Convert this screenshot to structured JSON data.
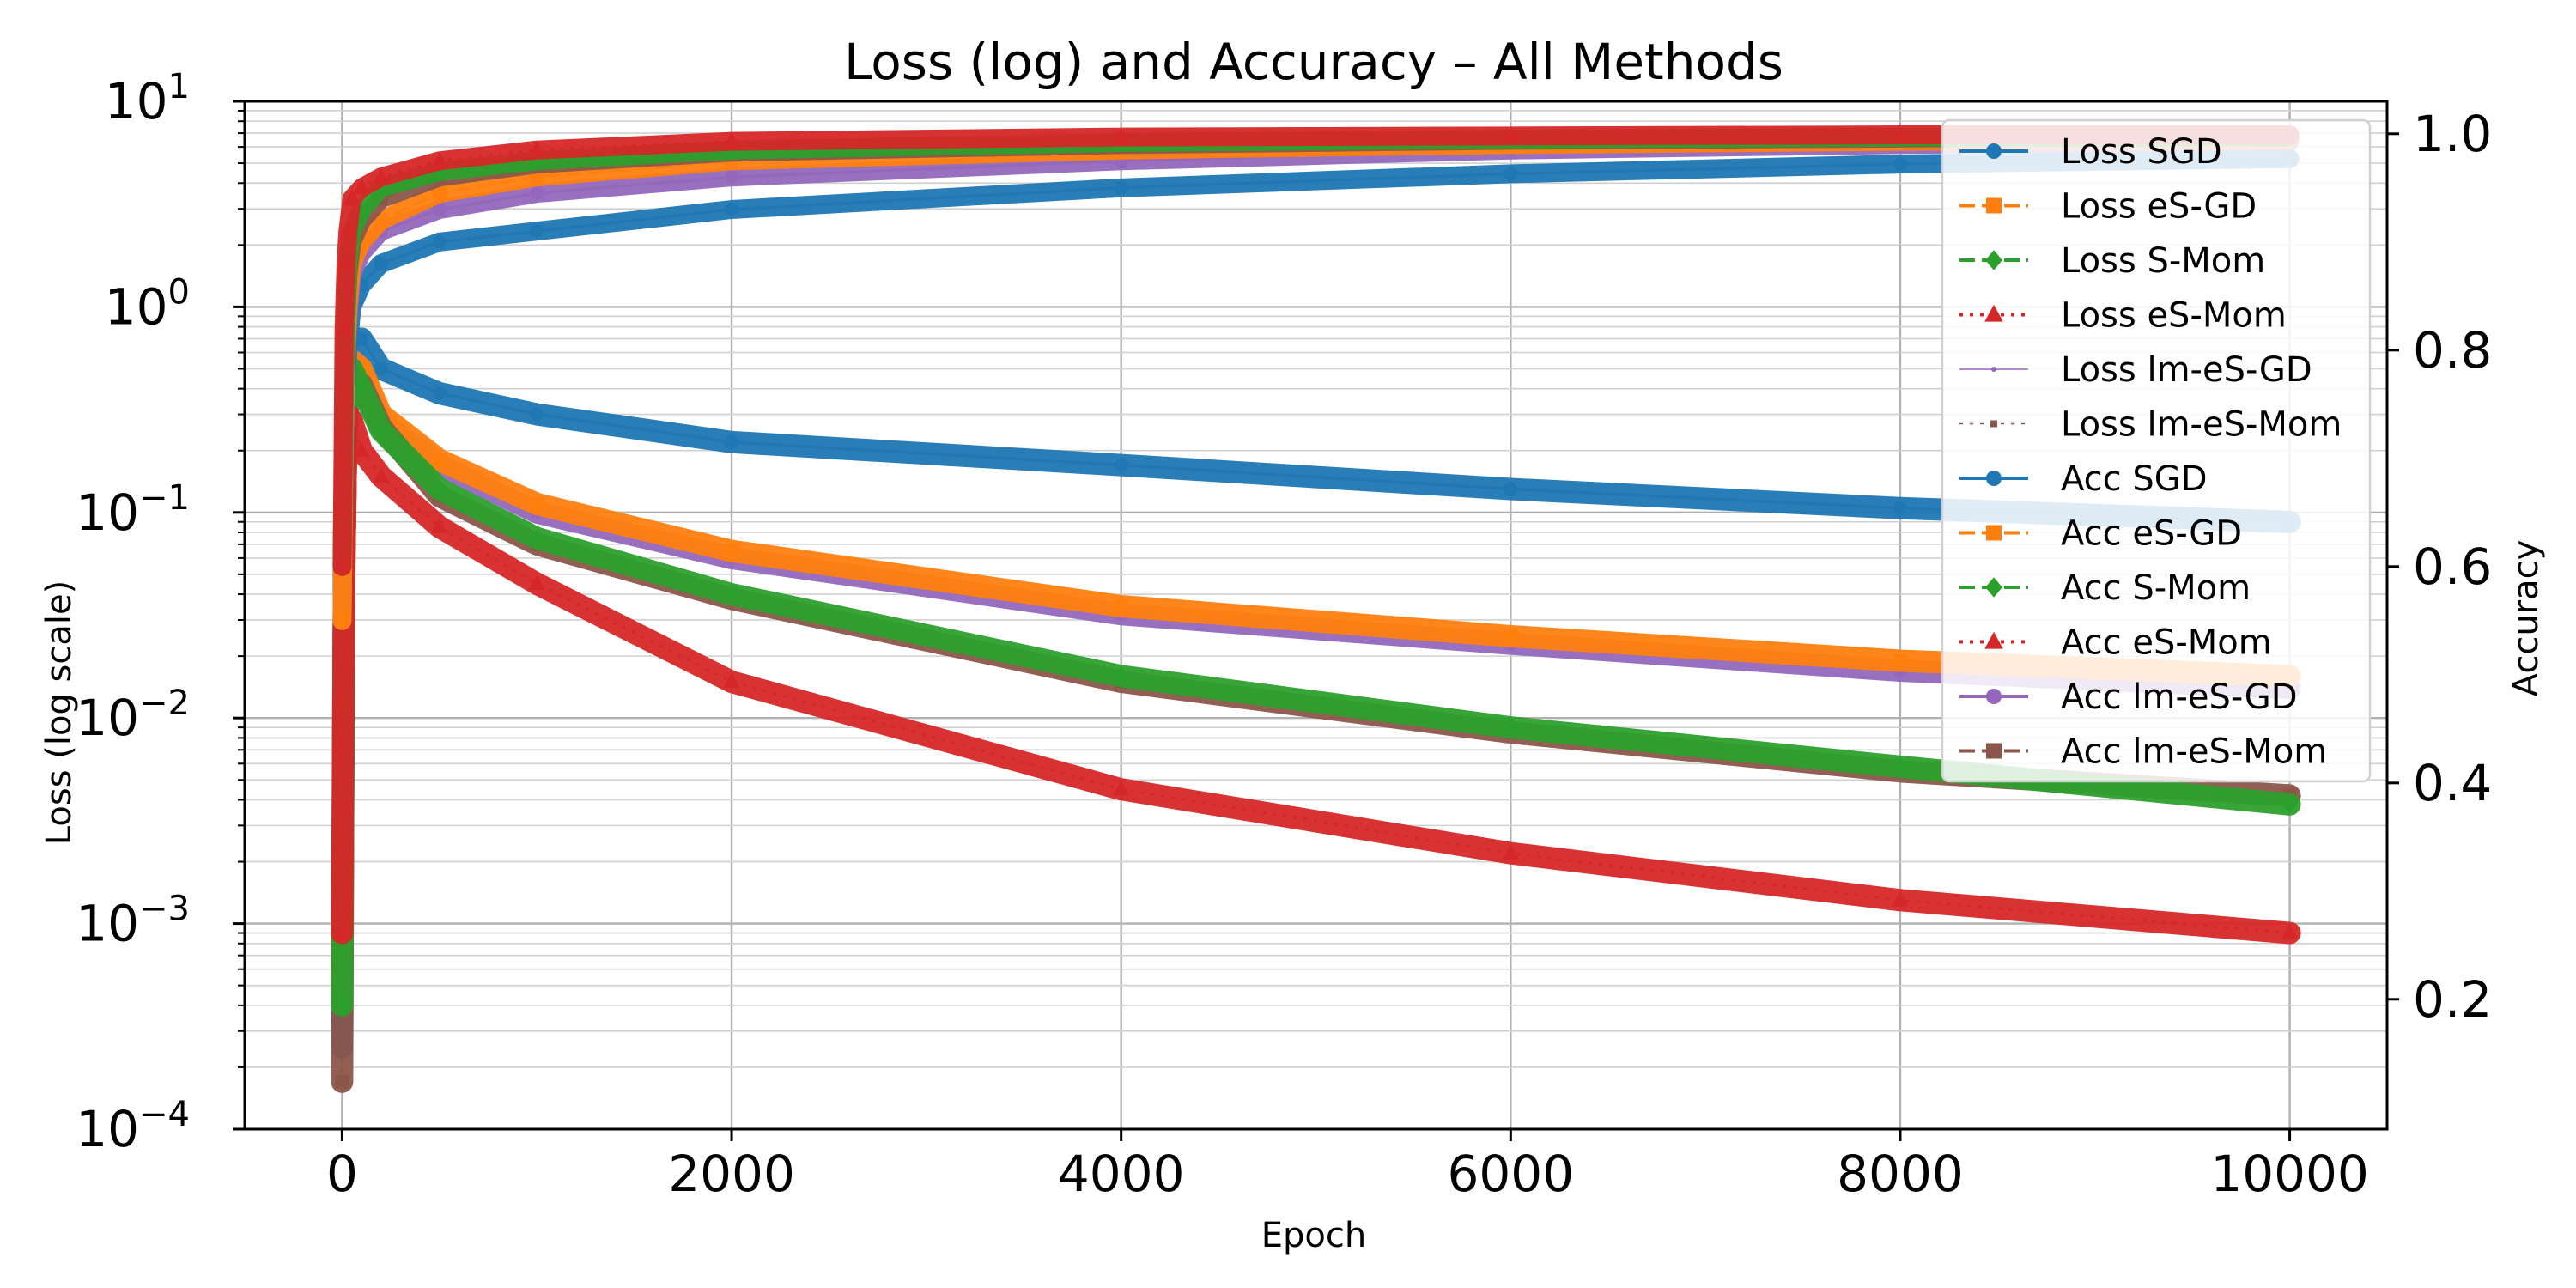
{
  "chart_data": {
    "type": "line",
    "title": "Loss (log) and Accuracy – All Methods",
    "xlabel": "Epoch",
    "ylabel_left": "Loss (log scale)",
    "ylabel_right": "Accuracy",
    "xlim": [
      -500,
      10500
    ],
    "ylim_left": [
      0.0001,
      10
    ],
    "yscale_left": "log",
    "ylim_right": [
      0.08,
      1.03
    ],
    "grid": true,
    "legend_position": "upper right",
    "x_ticks": [
      0,
      2000,
      4000,
      6000,
      8000,
      10000
    ],
    "y_left_ticks": [
      {
        "base": "10",
        "exp": "−4",
        "value": 0.0001
      },
      {
        "base": "10",
        "exp": "−3",
        "value": 0.001
      },
      {
        "base": "10",
        "exp": "−2",
        "value": 0.01
      },
      {
        "base": "10",
        "exp": "−1",
        "value": 0.1
      },
      {
        "base": "10",
        "exp": "0",
        "value": 1
      },
      {
        "base": "10",
        "exp": "1",
        "value": 10
      }
    ],
    "y_right_ticks": [
      0.2,
      0.4,
      0.6,
      0.8,
      1.0
    ],
    "y_right_tick_labels": [
      "0.2",
      "0.4",
      "0.6",
      "0.8",
      "1.0"
    ],
    "x": [
      0,
      10,
      20,
      30,
      50,
      100,
      200,
      500,
      1000,
      2000,
      4000,
      6000,
      8000,
      10000
    ],
    "series": [
      {
        "name": "Loss SGD",
        "axis": "left",
        "color": "#1f77b4",
        "marker": "circle",
        "dash": "solid",
        "values": [
          0.00025,
          0.05,
          0.2,
          0.4,
          0.6,
          0.7,
          0.5,
          0.38,
          0.3,
          0.22,
          0.17,
          0.13,
          0.105,
          0.09
        ]
      },
      {
        "name": "Loss eS-GD",
        "axis": "left",
        "color": "#ff7f0e",
        "marker": "square",
        "dash": "dashed",
        "values": [
          0.0005,
          0.05,
          0.2,
          0.4,
          0.55,
          0.5,
          0.3,
          0.18,
          0.11,
          0.065,
          0.035,
          0.025,
          0.019,
          0.016
        ]
      },
      {
        "name": "Loss S-Mom",
        "axis": "left",
        "color": "#2ca02c",
        "marker": "diamond",
        "dash": "dashed",
        "values": [
          0.0004,
          0.04,
          0.2,
          0.4,
          0.5,
          0.4,
          0.25,
          0.13,
          0.075,
          0.04,
          0.016,
          0.009,
          0.0058,
          0.0038
        ]
      },
      {
        "name": "Loss eS-Mom",
        "axis": "left",
        "color": "#d62728",
        "marker": "triangle",
        "dash": "dotted",
        "values": [
          0.0009,
          0.045,
          0.2,
          0.3,
          0.28,
          0.2,
          0.15,
          0.085,
          0.045,
          0.015,
          0.0045,
          0.0022,
          0.0013,
          0.0009
        ]
      },
      {
        "name": "Loss lm-eS-GD",
        "axis": "left",
        "color": "#9467bd",
        "marker": "point",
        "dash": "solid",
        "values": [
          0.0004,
          0.05,
          0.2,
          0.4,
          0.5,
          0.45,
          0.28,
          0.17,
          0.1,
          0.06,
          0.032,
          0.023,
          0.017,
          0.014
        ]
      },
      {
        "name": "Loss lm-eS-Mom",
        "axis": "left",
        "color": "#8c564b",
        "marker": "square-small",
        "dash": "dotted",
        "values": [
          0.00017,
          0.05,
          0.2,
          0.35,
          0.45,
          0.42,
          0.26,
          0.12,
          0.07,
          0.038,
          0.015,
          0.0085,
          0.0055,
          0.0042
        ]
      },
      {
        "name": "Acc SGD",
        "axis": "right",
        "color": "#1f77b4",
        "marker": "circle",
        "dash": "solid",
        "values": [
          0.58,
          0.7,
          0.77,
          0.8,
          0.84,
          0.86,
          0.88,
          0.9,
          0.91,
          0.93,
          0.95,
          0.963,
          0.972,
          0.977
        ]
      },
      {
        "name": "Acc eS-GD",
        "axis": "right",
        "color": "#ff7f0e",
        "marker": "square",
        "dash": "dashed",
        "values": [
          0.55,
          0.72,
          0.8,
          0.84,
          0.88,
          0.9,
          0.92,
          0.945,
          0.96,
          0.975,
          0.985,
          0.99,
          0.993,
          0.995
        ]
      },
      {
        "name": "Acc S-Mom",
        "axis": "right",
        "color": "#2ca02c",
        "marker": "diamond",
        "dash": "dashed",
        "values": [
          0.6,
          0.75,
          0.84,
          0.88,
          0.91,
          0.93,
          0.95,
          0.965,
          0.975,
          0.985,
          0.992,
          0.995,
          0.997,
          0.998
        ]
      },
      {
        "name": "Acc eS-Mom",
        "axis": "right",
        "color": "#d62728",
        "marker": "triangle",
        "dash": "dotted",
        "values": [
          0.6,
          0.82,
          0.88,
          0.91,
          0.94,
          0.95,
          0.96,
          0.975,
          0.985,
          0.993,
          0.997,
          0.998,
          0.999,
          0.999
        ]
      },
      {
        "name": "Acc lm-eS-GD",
        "axis": "right",
        "color": "#9467bd",
        "marker": "circle",
        "dash": "solid",
        "values": [
          0.55,
          0.7,
          0.79,
          0.83,
          0.87,
          0.89,
          0.91,
          0.93,
          0.945,
          0.96,
          0.975,
          0.985,
          0.99,
          0.993
        ]
      },
      {
        "name": "Acc lm-eS-Mom",
        "axis": "right",
        "color": "#8c564b",
        "marker": "square",
        "dash": "dashed",
        "values": [
          0.6,
          0.75,
          0.83,
          0.87,
          0.9,
          0.92,
          0.94,
          0.96,
          0.972,
          0.983,
          0.99,
          0.994,
          0.996,
          0.997
        ]
      }
    ]
  }
}
